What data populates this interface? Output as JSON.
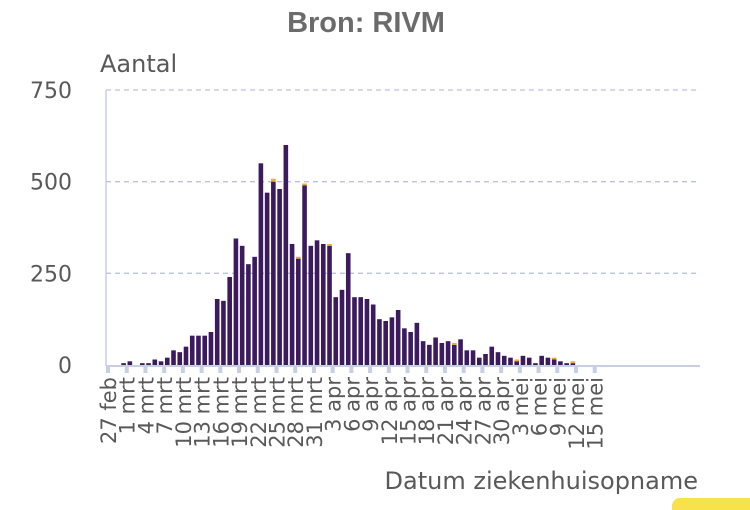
{
  "chart_data": {
    "type": "bar",
    "title": "Bron: RIVM",
    "ylabel": "Aantal",
    "xlabel": "Datum ziekenhuisopname",
    "ylim": [
      0,
      750
    ],
    "yticks": [
      0,
      250,
      500,
      750
    ],
    "grid": "horizontal dashed",
    "start_day": "27 feb",
    "tick_labels": [
      "27 feb",
      "1 mrt",
      "4 mrt",
      "7 mrt",
      "10 mrt",
      "13 mrt",
      "16 mrt",
      "19 mrt",
      "22 mrt",
      "25 mrt",
      "28 mrt",
      "31 mrt",
      "3 apr",
      "6 apr",
      "9 apr",
      "12 apr",
      "15 apr",
      "18 apr",
      "21 apr",
      "24 apr",
      "27 apr",
      "30 apr",
      "3 mei",
      "6 mei",
      "9 mei",
      "12 mei",
      "15 mei"
    ],
    "series": [
      {
        "color": "#3b1a5e",
        "values": [
          0,
          0,
          5,
          10,
          0,
          5,
          5,
          15,
          10,
          20,
          40,
          35,
          50,
          80,
          80,
          80,
          90,
          180,
          175,
          240,
          345,
          325,
          275,
          295,
          550,
          470,
          500,
          480,
          600,
          330,
          290,
          490,
          325,
          340,
          330,
          325,
          185,
          205,
          305,
          185,
          185,
          180,
          165,
          125,
          120,
          130,
          150,
          100,
          90,
          115,
          65,
          55,
          75,
          60,
          65,
          55,
          70,
          40,
          40,
          20,
          30,
          50,
          35,
          25,
          20,
          10,
          25,
          20,
          5,
          25,
          20,
          15,
          10,
          5,
          5,
          0
        ]
      },
      {
        "color": "#f0a830",
        "values": [
          0,
          0,
          0,
          0,
          0,
          0,
          0,
          0,
          0,
          0,
          0,
          0,
          0,
          0,
          0,
          0,
          0,
          0,
          0,
          0,
          0,
          0,
          0,
          0,
          0,
          0,
          8,
          0,
          0,
          0,
          5,
          5,
          0,
          0,
          0,
          5,
          0,
          0,
          0,
          0,
          0,
          0,
          0,
          0,
          0,
          0,
          0,
          0,
          0,
          0,
          0,
          0,
          0,
          0,
          0,
          5,
          0,
          0,
          0,
          0,
          0,
          0,
          0,
          0,
          0,
          5,
          0,
          0,
          0,
          0,
          0,
          5,
          0,
          0,
          5,
          0
        ]
      }
    ]
  }
}
